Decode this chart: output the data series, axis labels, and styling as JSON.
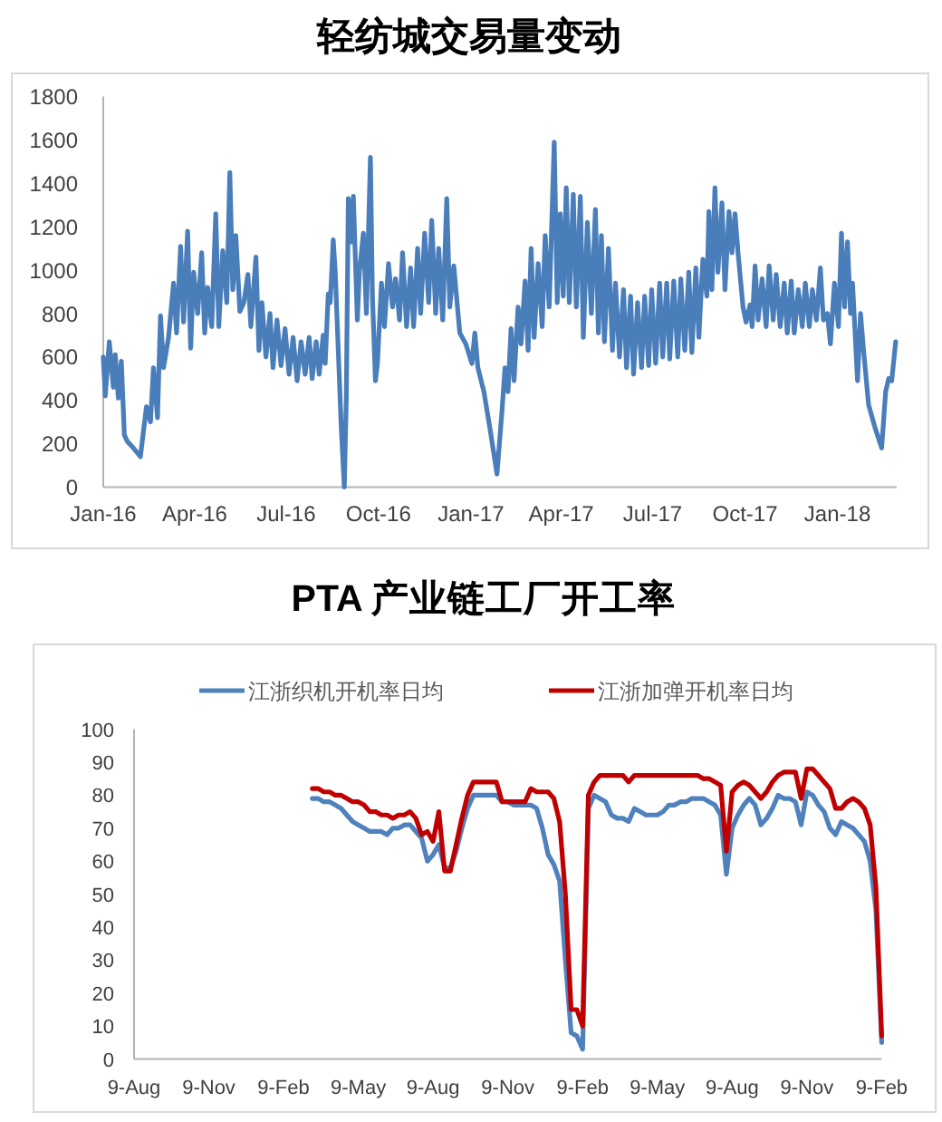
{
  "chart_data": [
    {
      "type": "line",
      "title": "轻纺城交易量变动",
      "color": "#4a7ebb",
      "x": [
        "2016-01-01",
        "2016-01-03",
        "2016-01-07",
        "2016-01-11",
        "2016-01-13",
        "2016-01-16",
        "2016-01-19",
        "2016-01-22",
        "2016-01-25",
        "2016-01-31",
        "2016-02-07",
        "2016-02-13",
        "2016-02-17",
        "2016-02-20",
        "2016-02-24",
        "2016-02-27",
        "2016-03-01",
        "2016-03-06",
        "2016-03-11",
        "2016-03-14",
        "2016-03-18",
        "2016-03-21",
        "2016-03-25",
        "2016-03-28",
        "2016-03-31",
        "2016-04-04",
        "2016-04-08",
        "2016-04-11",
        "2016-04-14",
        "2016-04-18",
        "2016-04-22",
        "2016-04-25",
        "2016-04-29",
        "2016-05-03",
        "2016-05-06",
        "2016-05-09",
        "2016-05-12",
        "2016-05-16",
        "2016-05-20",
        "2016-05-24",
        "2016-05-27",
        "2016-06-01",
        "2016-06-04",
        "2016-06-07",
        "2016-06-11",
        "2016-06-15",
        "2016-06-18",
        "2016-06-22",
        "2016-06-26",
        "2016-06-30",
        "2016-07-04",
        "2016-07-08",
        "2016-07-12",
        "2016-07-16",
        "2016-07-20",
        "2016-07-24",
        "2016-07-27",
        "2016-07-31",
        "2016-08-03",
        "2016-08-07",
        "2016-08-09",
        "2016-08-12",
        "2016-08-14",
        "2016-08-17",
        "2016-08-19",
        "2016-08-22",
        "2016-08-25",
        "2016-08-28",
        "2016-08-30",
        "2016-09-01",
        "2016-09-04",
        "2016-09-06",
        "2016-09-10",
        "2016-09-12",
        "2016-09-16",
        "2016-09-19",
        "2016-09-23",
        "2016-09-25",
        "2016-09-28",
        "2016-09-30",
        "2016-10-04",
        "2016-10-07",
        "2016-10-11",
        "2016-10-15",
        "2016-10-18",
        "2016-10-22",
        "2016-10-25",
        "2016-10-29",
        "2016-11-02",
        "2016-11-05",
        "2016-11-09",
        "2016-11-12",
        "2016-11-16",
        "2016-11-20",
        "2016-11-23",
        "2016-11-27",
        "2016-11-30",
        "2016-12-04",
        "2016-12-08",
        "2016-12-11",
        "2016-12-15",
        "2016-12-21",
        "2016-12-27",
        "2017-01-02",
        "2017-01-05",
        "2017-01-08",
        "2017-01-14",
        "2017-01-20",
        "2017-01-27",
        "2017-02-01",
        "2017-02-04",
        "2017-02-07",
        "2017-02-10",
        "2017-02-13",
        "2017-02-17",
        "2017-02-20",
        "2017-02-24",
        "2017-02-27",
        "2017-03-02",
        "2017-03-05",
        "2017-03-09",
        "2017-03-13",
        "2017-03-16",
        "2017-03-20",
        "2017-03-25",
        "2017-03-28",
        "2017-03-31",
        "2017-04-03",
        "2017-04-06",
        "2017-04-09",
        "2017-04-13",
        "2017-04-16",
        "2017-04-20",
        "2017-04-23",
        "2017-04-27",
        "2017-05-01",
        "2017-05-05",
        "2017-05-08",
        "2017-05-11",
        "2017-05-14",
        "2017-05-18",
        "2017-05-22",
        "2017-05-25",
        "2017-05-29",
        "2017-06-02",
        "2017-06-05",
        "2017-06-09",
        "2017-06-12",
        "2017-06-16",
        "2017-06-20",
        "2017-06-23",
        "2017-06-27",
        "2017-06-30",
        "2017-07-04",
        "2017-07-08",
        "2017-07-11",
        "2017-07-15",
        "2017-07-18",
        "2017-07-22",
        "2017-07-26",
        "2017-07-29",
        "2017-08-02",
        "2017-08-06",
        "2017-08-09",
        "2017-08-13",
        "2017-08-16",
        "2017-08-20",
        "2017-08-24",
        "2017-08-26",
        "2017-08-29",
        "2017-09-01",
        "2017-09-04",
        "2017-09-08",
        "2017-09-11",
        "2017-09-15",
        "2017-09-18",
        "2017-09-21",
        "2017-09-24",
        "2017-09-29",
        "2017-10-02",
        "2017-10-06",
        "2017-10-08",
        "2017-10-11",
        "2017-10-14",
        "2017-10-18",
        "2017-10-22",
        "2017-10-25",
        "2017-10-29",
        "2017-11-01",
        "2017-11-05",
        "2017-11-09",
        "2017-11-12",
        "2017-11-16",
        "2017-11-19",
        "2017-11-23",
        "2017-11-27",
        "2017-11-30",
        "2017-12-04",
        "2017-12-07",
        "2017-12-11",
        "2017-12-15",
        "2017-12-18",
        "2017-12-22",
        "2017-12-25",
        "2017-12-29",
        "2018-01-02",
        "2018-01-05",
        "2018-01-08",
        "2018-01-11",
        "2018-01-14",
        "2018-01-16",
        "2018-01-21",
        "2018-01-24",
        "2018-01-27",
        "2018-02-01",
        "2018-02-07",
        "2018-02-14",
        "2018-02-18",
        "2018-02-21",
        "2018-02-24",
        "2018-02-28"
      ],
      "values": [
        600,
        420,
        670,
        460,
        610,
        410,
        580,
        240,
        210,
        180,
        140,
        370,
        300,
        550,
        320,
        790,
        550,
        690,
        940,
        710,
        1110,
        760,
        1180,
        640,
        990,
        800,
        1080,
        710,
        920,
        740,
        1260,
        740,
        1090,
        850,
        1450,
        910,
        1160,
        810,
        850,
        980,
        740,
        1060,
        630,
        850,
        600,
        800,
        550,
        770,
        560,
        730,
        520,
        690,
        490,
        670,
        520,
        690,
        500,
        670,
        520,
        700,
        570,
        890,
        850,
        1140,
        990,
        630,
        270,
        0,
        410,
        1330,
        1130,
        1340,
        770,
        990,
        1170,
        800,
        1520,
        880,
        490,
        570,
        940,
        740,
        1030,
        830,
        960,
        770,
        1080,
        740,
        1010,
        740,
        1100,
        800,
        1170,
        850,
        1230,
        800,
        1100,
        770,
        1330,
        830,
        1020,
        710,
        660,
        570,
        710,
        550,
        440,
        270,
        60,
        350,
        550,
        440,
        730,
        490,
        830,
        660,
        950,
        630,
        1100,
        690,
        1030,
        740,
        1160,
        830,
        1590,
        850,
        1260,
        880,
        1380,
        850,
        1350,
        830,
        1340,
        690,
        1220,
        800,
        1280,
        710,
        1160,
        670,
        1100,
        630,
        940,
        600,
        910,
        550,
        880,
        520,
        850,
        550,
        880,
        560,
        910,
        570,
        940,
        600,
        940,
        590,
        950,
        600,
        960,
        630,
        990,
        620,
        1010,
        690,
        1050,
        880,
        1270,
        910,
        1380,
        990,
        1310,
        910,
        1270,
        1080,
        1260,
        1080,
        830,
        760,
        840,
        740,
        1020,
        770,
        960,
        740,
        1020,
        770,
        980,
        740,
        940,
        710,
        950,
        710,
        910,
        740,
        940,
        740,
        910,
        770,
        1010,
        770,
        800,
        660,
        940,
        740,
        1170,
        830,
        1130,
        800,
        940,
        490,
        800,
        630,
        380,
        280,
        180,
        440,
        500,
        490,
        670
      ],
      "xlim": [
        "2016-01-01",
        "2018-03-01"
      ],
      "xticks": [
        {
          "value": "2016-01-01",
          "label": "Jan-16"
        },
        {
          "value": "2016-04-01",
          "label": "Apr-16"
        },
        {
          "value": "2016-07-01",
          "label": "Jul-16"
        },
        {
          "value": "2016-10-01",
          "label": "Oct-16"
        },
        {
          "value": "2017-01-01",
          "label": "Jan-17"
        },
        {
          "value": "2017-04-01",
          "label": "Apr-17"
        },
        {
          "value": "2017-07-01",
          "label": "Jul-17"
        },
        {
          "value": "2017-10-01",
          "label": "Oct-17"
        },
        {
          "value": "2018-01-01",
          "label": "Jan-18"
        }
      ],
      "ylim": [
        0,
        1800
      ],
      "yticks": [
        0,
        200,
        400,
        600,
        800,
        1000,
        1200,
        1400,
        1600,
        1800
      ]
    },
    {
      "type": "line",
      "title": "PTA 产业链工厂开工率",
      "legend": "top",
      "categories": [
        "9-Aug",
        null,
        null,
        null,
        null,
        null,
        null,
        null,
        null,
        null,
        null,
        null,
        null,
        "9-Nov",
        null,
        null,
        null,
        null,
        null,
        null,
        null,
        null,
        null,
        null,
        null,
        null,
        "9-Feb",
        null,
        null,
        null,
        null,
        null,
        null,
        null,
        null,
        null,
        null,
        null,
        null,
        "9-May",
        null,
        null,
        null,
        null,
        null,
        null,
        null,
        null,
        null,
        null,
        null,
        null,
        "9-Aug",
        null,
        null,
        null,
        null,
        null,
        null,
        null,
        null,
        null,
        null,
        null,
        null,
        "9-Nov",
        null,
        null,
        null,
        null,
        null,
        null,
        null,
        null,
        null,
        null,
        null,
        null,
        "9-Feb",
        null,
        null,
        null,
        null,
        null,
        null,
        null,
        null,
        null,
        null,
        null,
        null,
        "9-May",
        null,
        null,
        null,
        null,
        null,
        null,
        null,
        null,
        null,
        null,
        null,
        null,
        "9-Aug",
        null,
        null,
        null,
        null,
        null,
        null,
        null,
        null,
        null,
        null,
        null,
        null,
        "9-Nov",
        null,
        null,
        null,
        null,
        null,
        null,
        null,
        null,
        null,
        null,
        null,
        null,
        "9-Feb"
      ],
      "series": [
        {
          "name": "江浙织机开机率日均",
          "color": "#4f81bd",
          "values": [
            null,
            null,
            null,
            null,
            null,
            null,
            null,
            null,
            null,
            null,
            null,
            null,
            null,
            null,
            null,
            null,
            null,
            null,
            null,
            null,
            null,
            null,
            null,
            null,
            null,
            null,
            null,
            null,
            null,
            null,
            null,
            79,
            79,
            78,
            78,
            77,
            76,
            74,
            72,
            71,
            70,
            69,
            69,
            69,
            68,
            70,
            70,
            71,
            71,
            69,
            67,
            60,
            62,
            65,
            58,
            58,
            63,
            70,
            76,
            80,
            80,
            80,
            80,
            80,
            78,
            78,
            77,
            77,
            77,
            77,
            76,
            70,
            62,
            59,
            54,
            30,
            8,
            7,
            3,
            76,
            80,
            79,
            78,
            74,
            73,
            73,
            72,
            76,
            75,
            74,
            74,
            74,
            75,
            77,
            77,
            78,
            78,
            79,
            79,
            79,
            78,
            77,
            74,
            56,
            70,
            74,
            77,
            79,
            77,
            71,
            73,
            76,
            80,
            79,
            79,
            78,
            71,
            81,
            80,
            77,
            75,
            70,
            68,
            72,
            71,
            70,
            68,
            66,
            60,
            45,
            5
          ]
        },
        {
          "name": "江浙加弹开机率日均",
          "color": "#c00000",
          "values": [
            null,
            null,
            null,
            null,
            null,
            null,
            null,
            null,
            null,
            null,
            null,
            null,
            null,
            null,
            null,
            null,
            null,
            null,
            null,
            null,
            null,
            null,
            null,
            null,
            null,
            null,
            null,
            null,
            null,
            null,
            null,
            82,
            82,
            81,
            81,
            80,
            80,
            79,
            78,
            78,
            77,
            75,
            75,
            74,
            74,
            73,
            74,
            74,
            75,
            73,
            68,
            69,
            66,
            75,
            57,
            57,
            65,
            73,
            80,
            84,
            84,
            84,
            84,
            84,
            78,
            78,
            78,
            78,
            78,
            82,
            81,
            81,
            81,
            79,
            72,
            50,
            15,
            15,
            10,
            80,
            84,
            86,
            86,
            86,
            86,
            86,
            84,
            86,
            86,
            86,
            86,
            86,
            86,
            86,
            86,
            86,
            86,
            86,
            86,
            85,
            85,
            84,
            83,
            63,
            81,
            83,
            84,
            83,
            81,
            79,
            81,
            84,
            86,
            87,
            87,
            87,
            79,
            88,
            88,
            86,
            84,
            82,
            76,
            76,
            78,
            79,
            78,
            76,
            71,
            52,
            7
          ]
        }
      ],
      "ylim": [
        0,
        100
      ],
      "yticks": [
        0,
        10,
        20,
        30,
        40,
        50,
        60,
        70,
        80,
        90,
        100
      ]
    }
  ]
}
